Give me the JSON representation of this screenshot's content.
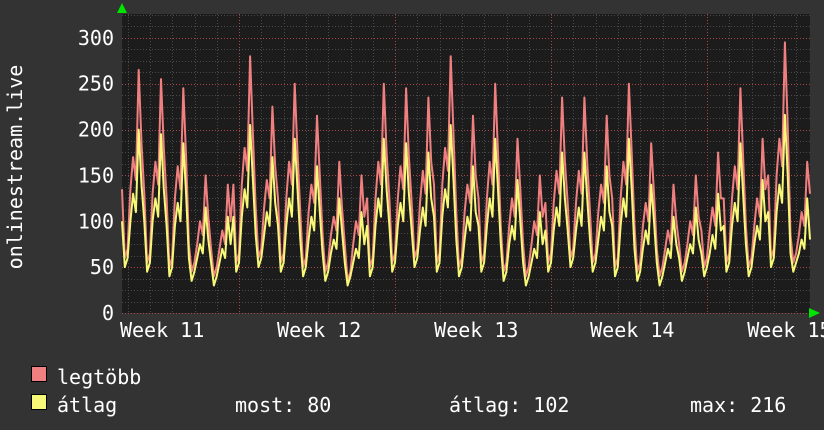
{
  "colors": {
    "outer_bg": "#333333",
    "plot_bg": "#1c1c1c",
    "grid_minor": "#4a4a4a",
    "grid_major": "#a84848",
    "text": "#ffffff",
    "arrow_green": "#00e500",
    "series_most": "#f08080",
    "series_avg": "#f8f878"
  },
  "chart_data": {
    "type": "line",
    "title": "onlinestream.live",
    "xlabel": "",
    "ylabel": "",
    "grid": true,
    "legend_position": "bottom-left",
    "y_ticks": [
      0,
      50,
      100,
      150,
      200,
      250,
      300
    ],
    "y_minor_step": 12.5,
    "y_axis_top": 326,
    "ylim": [
      0,
      326
    ],
    "x_domain_days": 30.875,
    "samples_per_day": 8,
    "week_gridline_days": [
      5.26,
      12.26,
      19.26,
      26.26
    ],
    "week_labels": [
      {
        "label": "Week 11",
        "day": 1.8
      },
      {
        "label": "Week 12",
        "day": 8.85
      },
      {
        "label": "Week 13",
        "day": 15.9
      },
      {
        "label": "Week 14",
        "day": 22.9
      },
      {
        "label": "Week 15",
        "day": 29.95
      }
    ],
    "series": [
      {
        "name": "legtöbb",
        "color": "#f08080",
        "values": [
          135,
          60,
          70,
          135,
          170,
          145,
          265,
          185,
          130,
          55,
          65,
          130,
          165,
          140,
          255,
          180,
          125,
          50,
          60,
          125,
          160,
          135,
          245,
          170,
          75,
          45,
          55,
          75,
          100,
          85,
          150,
          105,
          70,
          40,
          50,
          70,
          90,
          75,
          140,
          100,
          140,
          55,
          65,
          140,
          180,
          155,
          280,
          195,
          115,
          60,
          70,
          115,
          145,
          125,
          225,
          160,
          125,
          55,
          65,
          125,
          165,
          140,
          250,
          175,
          110,
          50,
          60,
          110,
          140,
          120,
          215,
          150,
          85,
          45,
          55,
          85,
          105,
          90,
          165,
          115,
          75,
          35,
          45,
          75,
          100,
          85,
          150,
          105,
          125,
          50,
          60,
          125,
          165,
          140,
          250,
          175,
          125,
          55,
          65,
          125,
          160,
          135,
          245,
          170,
          120,
          60,
          70,
          120,
          155,
          130,
          235,
          165,
          140,
          55,
          65,
          140,
          180,
          155,
          280,
          195,
          110,
          50,
          60,
          110,
          140,
          120,
          215,
          150,
          125,
          55,
          65,
          125,
          165,
          140,
          250,
          175,
          95,
          45,
          55,
          95,
          125,
          105,
          190,
          135,
          75,
          40,
          50,
          75,
          100,
          85,
          150,
          105,
          120,
          55,
          65,
          120,
          155,
          130,
          235,
          165,
          120,
          60,
          70,
          120,
          155,
          130,
          235,
          165,
          110,
          55,
          65,
          110,
          140,
          120,
          215,
          150,
          125,
          50,
          60,
          125,
          165,
          140,
          250,
          175,
          95,
          45,
          55,
          95,
          120,
          100,
          185,
          130,
          70,
          40,
          50,
          70,
          90,
          75,
          140,
          100,
          75,
          45,
          55,
          75,
          100,
          85,
          150,
          105,
          90,
          50,
          60,
          90,
          115,
          95,
          175,
          125,
          125,
          55,
          65,
          125,
          160,
          135,
          245,
          170,
          95,
          50,
          60,
          95,
          125,
          105,
          190,
          135,
          150,
          60,
          70,
          150,
          190,
          160,
          295,
          205,
          85,
          55,
          65,
          85,
          110,
          95,
          165,
          130
        ]
      },
      {
        "name": "átlag",
        "color": "#f8f878",
        "values": [
          100,
          50,
          60,
          100,
          130,
          110,
          200,
          140,
          100,
          45,
          55,
          100,
          125,
          105,
          195,
          135,
          95,
          40,
          50,
          95,
          120,
          100,
          185,
          130,
          60,
          35,
          45,
          60,
          75,
          65,
          115,
          80,
          55,
          30,
          40,
          55,
          70,
          60,
          105,
          75,
          105,
          45,
          55,
          105,
          135,
          115,
          205,
          145,
          85,
          50,
          60,
          85,
          110,
          95,
          170,
          120,
          95,
          45,
          55,
          95,
          125,
          105,
          190,
          135,
          80,
          40,
          50,
          80,
          105,
          90,
          160,
          110,
          65,
          35,
          45,
          65,
          80,
          70,
          125,
          90,
          55,
          30,
          40,
          55,
          70,
          60,
          110,
          75,
          95,
          40,
          50,
          95,
          125,
          105,
          190,
          135,
          95,
          45,
          55,
          95,
          120,
          100,
          185,
          130,
          90,
          50,
          60,
          90,
          115,
          95,
          175,
          125,
          105,
          45,
          55,
          105,
          135,
          115,
          205,
          145,
          80,
          40,
          50,
          80,
          105,
          90,
          160,
          110,
          95,
          45,
          55,
          95,
          125,
          105,
          190,
          135,
          75,
          35,
          45,
          75,
          95,
          80,
          145,
          100,
          55,
          30,
          40,
          55,
          70,
          60,
          110,
          75,
          90,
          45,
          55,
          90,
          115,
          95,
          175,
          125,
          90,
          50,
          60,
          90,
          115,
          95,
          175,
          125,
          80,
          45,
          55,
          80,
          105,
          90,
          160,
          110,
          95,
          40,
          50,
          95,
          125,
          105,
          190,
          135,
          70,
          35,
          45,
          70,
          90,
          75,
          140,
          100,
          55,
          30,
          40,
          55,
          70,
          60,
          105,
          75,
          60,
          35,
          45,
          60,
          75,
          65,
          115,
          80,
          65,
          40,
          50,
          65,
          85,
          70,
          130,
          90,
          95,
          45,
          55,
          95,
          120,
          100,
          185,
          130,
          75,
          40,
          50,
          75,
          95,
          80,
          145,
          100,
          110,
          50,
          60,
          110,
          140,
          120,
          216,
          150,
          65,
          45,
          55,
          65,
          80,
          70,
          125,
          80
        ]
      }
    ]
  },
  "legend": {
    "items": [
      {
        "label": "legtöbb",
        "color": "#f08080"
      },
      {
        "label": "átlag",
        "color": "#f8f878"
      }
    ]
  },
  "stats": {
    "items": [
      {
        "name": "most",
        "text": "most: 80"
      },
      {
        "name": "átlag",
        "text": "átlag: 102"
      },
      {
        "name": "max",
        "text": "max: 216"
      }
    ]
  }
}
